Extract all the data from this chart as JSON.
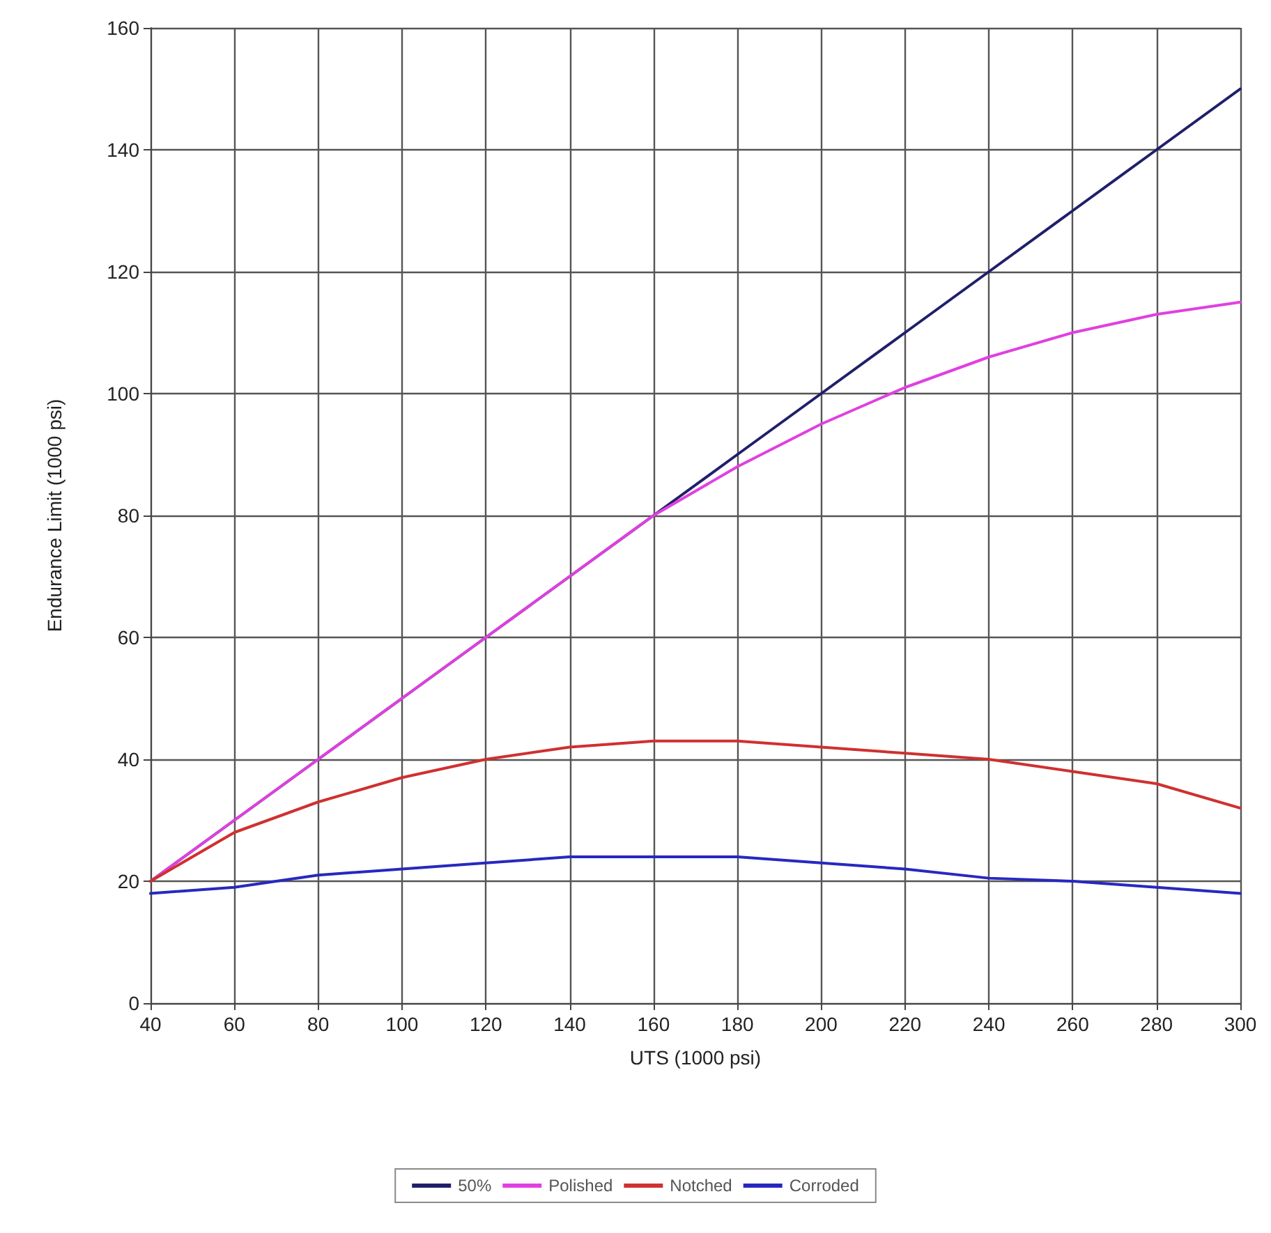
{
  "chart_data": {
    "type": "line",
    "xlabel": "UTS (1000 psi)",
    "ylabel": "Endurance Limit (1000 psi)",
    "x": [
      40,
      60,
      80,
      100,
      120,
      140,
      160,
      180,
      200,
      220,
      240,
      260,
      280,
      300
    ],
    "series": [
      {
        "name": "50%",
        "color": "#1f1f6b",
        "values": [
          20,
          30,
          40,
          50,
          60,
          70,
          80,
          90,
          100,
          110,
          120,
          130,
          140,
          150
        ]
      },
      {
        "name": "Polished",
        "color": "#e040e0",
        "values": [
          20,
          30,
          40,
          50,
          60,
          70,
          80,
          88,
          95,
          101,
          106,
          110,
          113,
          115
        ]
      },
      {
        "name": "Notched",
        "color": "#d03030",
        "values": [
          20,
          28,
          33,
          37,
          40,
          42,
          43,
          43,
          42,
          41,
          40,
          38,
          36,
          32
        ]
      },
      {
        "name": "Corroded",
        "color": "#2828c0",
        "values": [
          18,
          19,
          21,
          22,
          23,
          24,
          24,
          24,
          23,
          22,
          20.5,
          20,
          19,
          18
        ]
      }
    ],
    "xlim": [
      40,
      300
    ],
    "xticks": [
      40,
      60,
      80,
      100,
      120,
      140,
      160,
      180,
      200,
      220,
      240,
      260,
      280,
      300
    ],
    "ylim": [
      0,
      160
    ],
    "yticks": [
      0,
      20,
      40,
      60,
      80,
      100,
      120,
      140,
      160
    ],
    "grid": true,
    "legend": "bottom",
    "marker": "none",
    "line_style": "solid"
  }
}
